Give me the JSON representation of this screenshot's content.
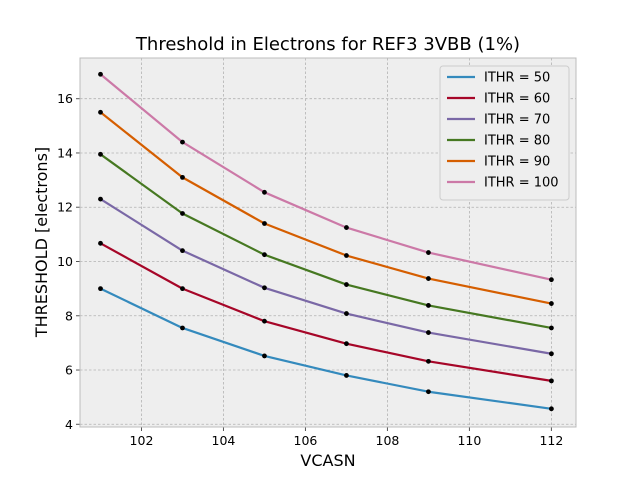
{
  "chart_data": {
    "type": "line",
    "title": "Threshold in Electrons for REF3 3VBB (1%)",
    "xlabel": "VCASN",
    "ylabel": "THRESHOLD [electrons]",
    "xlim": [
      100.5,
      112.6
    ],
    "ylim": [
      3.9,
      17.5
    ],
    "xticks": [
      102,
      104,
      106,
      108,
      110,
      112
    ],
    "yticks": [
      4,
      6,
      8,
      10,
      12,
      14,
      16
    ],
    "grid": true,
    "legend_position": "top-right",
    "x": [
      101,
      103,
      105,
      107,
      109,
      112
    ],
    "series": [
      {
        "name": "ITHR = 50",
        "color": "#348ABD",
        "values": [
          9.0,
          7.55,
          6.52,
          5.8,
          5.2,
          4.57
        ]
      },
      {
        "name": "ITHR = 60",
        "color": "#A60628",
        "values": [
          10.67,
          9.0,
          7.8,
          6.97,
          6.32,
          5.6
        ]
      },
      {
        "name": "ITHR = 70",
        "color": "#7A68A6",
        "values": [
          12.3,
          10.4,
          9.03,
          8.08,
          7.38,
          6.6
        ]
      },
      {
        "name": "ITHR = 80",
        "color": "#467821",
        "values": [
          13.95,
          11.77,
          10.25,
          9.15,
          8.38,
          7.55
        ]
      },
      {
        "name": "ITHR = 90",
        "color": "#D55E00",
        "values": [
          15.5,
          13.1,
          11.4,
          10.22,
          9.37,
          8.45
        ]
      },
      {
        "name": "ITHR = 100",
        "color": "#CC79A7",
        "values": [
          16.9,
          14.4,
          12.55,
          11.25,
          10.33,
          9.33
        ]
      }
    ]
  }
}
